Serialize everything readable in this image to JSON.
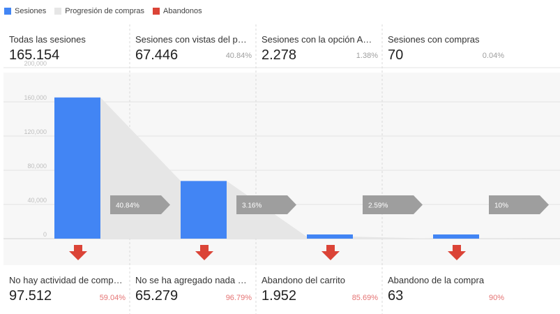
{
  "legend": [
    {
      "label": "Sesiones",
      "color": "#4285f4"
    },
    {
      "label": "Progresión de compras",
      "color": "#e6e6e6"
    },
    {
      "label": "Abandonos",
      "color": "#db4437"
    }
  ],
  "colors": {
    "sessions": "#4285f4",
    "progression": "#e6e6e6",
    "abandon": "#db4437",
    "step_arrow": "#9e9e9e"
  },
  "chart_data": {
    "type": "bar",
    "ylim": [
      0,
      200000
    ],
    "y_ticks": [
      "0",
      "40,000",
      "80,000",
      "120,000",
      "160,000",
      "200,000"
    ],
    "y_tick_values": [
      0,
      40000,
      80000,
      120000,
      160000,
      200000
    ],
    "grid": true,
    "stages": [
      {
        "label": "Todas las sesiones",
        "value_text": "165.154",
        "value": 165154,
        "pct": ""
      },
      {
        "label": "Sesiones con vistas del prod..",
        "value_text": "67.446",
        "value": 67446,
        "pct": "40.84%"
      },
      {
        "label": "Sesiones con la opción Agre..",
        "value_text": "2.278",
        "value": 2278,
        "pct": "1.38%"
      },
      {
        "label": "Sesiones con compras",
        "value_text": "70",
        "value": 70,
        "pct": "0.04%"
      }
    ],
    "conversion_rates": [
      "40.84%",
      "3.16%",
      "2.59%",
      "10%"
    ],
    "abandonments": [
      {
        "label": "No hay actividad de compras",
        "value_text": "97.512",
        "pct": "59.04%"
      },
      {
        "label": "No se ha agregado nada al ..",
        "value_text": "65.279",
        "pct": "96.79%"
      },
      {
        "label": "Abandono del carrito",
        "value_text": "1.952",
        "pct": "85.69%"
      },
      {
        "label": "Abandono de la compra",
        "value_text": "63",
        "pct": "90%"
      }
    ]
  }
}
